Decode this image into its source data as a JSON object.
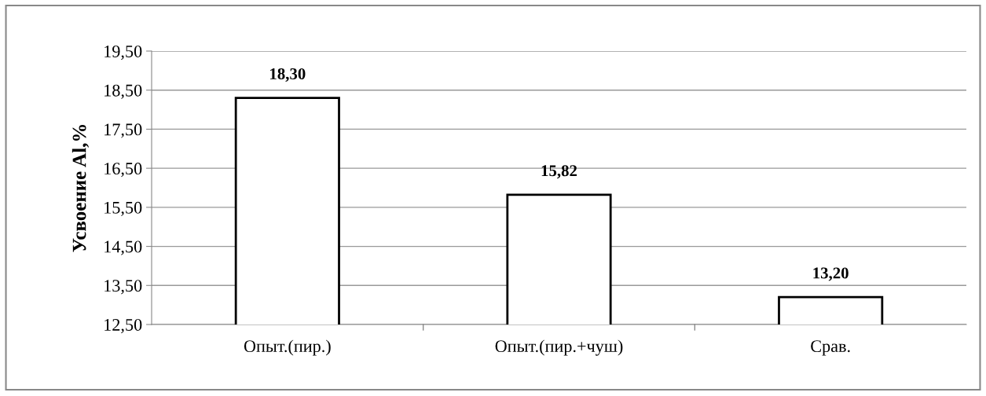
{
  "chart_data": {
    "type": "bar",
    "ylabel": "Усвоение Al,%",
    "categories": [
      "Опыт.(пир.)",
      "Опыт.(пир.+чуш)",
      "Срав."
    ],
    "values": [
      18.3,
      15.82,
      13.2
    ],
    "color": "#ffffff",
    "value_labels": [
      "18,30",
      "15,82",
      "13,20"
    ],
    "ylim": [
      12.5,
      19.5
    ],
    "yticks": [
      {
        "value": 12.5,
        "label": "12,50"
      },
      {
        "value": 13.5,
        "label": "13,50"
      },
      {
        "value": 14.5,
        "label": "14,50"
      },
      {
        "value": 15.5,
        "label": "15,50"
      },
      {
        "value": 16.5,
        "label": "16,50"
      },
      {
        "value": 17.5,
        "label": "17,50"
      },
      {
        "value": 18.5,
        "label": "18,50"
      },
      {
        "value": 19.5,
        "label": "19,50"
      }
    ],
    "grid": "y",
    "legend": false
  }
}
